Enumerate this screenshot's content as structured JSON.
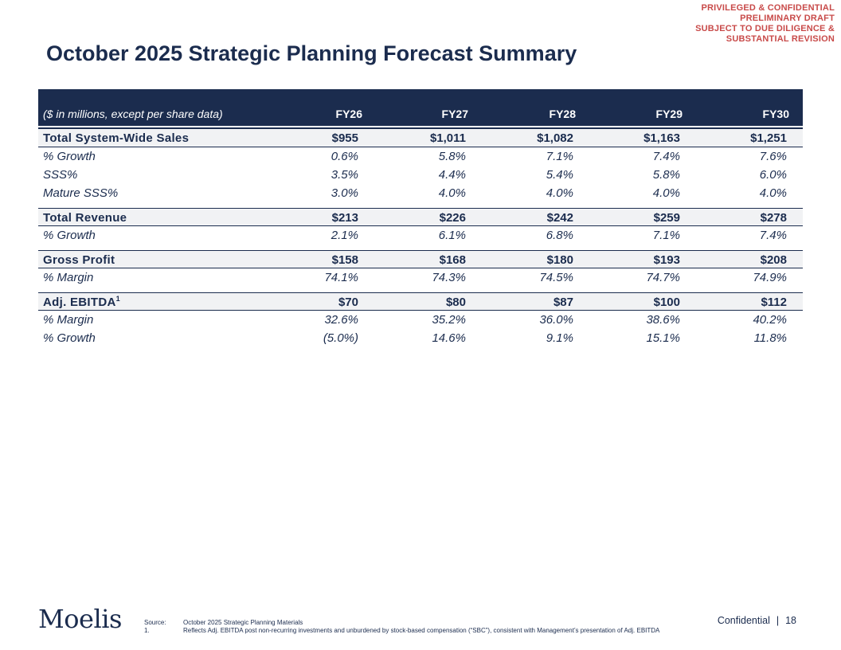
{
  "stamp": {
    "line1": "PRIVILEGED & CONFIDENTIAL",
    "line2": "PRELIMINARY DRAFT",
    "line3": "SUBJECT TO DUE DILIGENCE &",
    "line4": "SUBSTANTIAL REVISION"
  },
  "title": "October 2025 Strategic Planning Forecast Summary",
  "table": {
    "header": {
      "label": "($ in millions, except per share data)",
      "years": [
        "FY26",
        "FY27",
        "FY28",
        "FY29",
        "FY30"
      ]
    },
    "rows": {
      "sales": {
        "label": "Total System-Wide Sales",
        "values": [
          "$955",
          "$1,011",
          "$1,082",
          "$1,163",
          "$1,251"
        ]
      },
      "sales_growth": {
        "label": "% Growth",
        "values": [
          "0.6%",
          "5.8%",
          "7.1%",
          "7.4%",
          "7.6%"
        ]
      },
      "sss": {
        "label": "SSS%",
        "values": [
          "3.5%",
          "4.4%",
          "5.4%",
          "5.8%",
          "6.0%"
        ]
      },
      "mature_sss": {
        "label": "Mature SSS%",
        "values": [
          "3.0%",
          "4.0%",
          "4.0%",
          "4.0%",
          "4.0%"
        ]
      },
      "revenue": {
        "label": "Total Revenue",
        "values": [
          "$213",
          "$226",
          "$242",
          "$259",
          "$278"
        ]
      },
      "revenue_growth": {
        "label": "% Growth",
        "values": [
          "2.1%",
          "6.1%",
          "6.8%",
          "7.1%",
          "7.4%"
        ]
      },
      "gross_profit": {
        "label": "Gross Profit",
        "values": [
          "$158",
          "$168",
          "$180",
          "$193",
          "$208"
        ]
      },
      "gp_margin": {
        "label": "% Margin",
        "values": [
          "74.1%",
          "74.3%",
          "74.5%",
          "74.7%",
          "74.9%"
        ]
      },
      "ebitda": {
        "label": "Adj. EBITDA",
        "footnote": "1",
        "values": [
          "$70",
          "$80",
          "$87",
          "$100",
          "$112"
        ]
      },
      "ebitda_margin": {
        "label": "% Margin",
        "values": [
          "32.6%",
          "35.2%",
          "36.0%",
          "38.6%",
          "40.2%"
        ]
      },
      "ebitda_growth": {
        "label": "% Growth",
        "values": [
          "(5.0%)",
          "14.6%",
          "9.1%",
          "15.1%",
          "11.8%"
        ]
      }
    }
  },
  "footer": {
    "logo": "Moelis",
    "source_tag": "Source:",
    "source_text": "October 2025 Strategic Planning Materials",
    "note1_tag": "1.",
    "note1_text": "Reflects Adj. EBITDA post non-recurring investments and unburdened by stock-based compensation (“SBC”), consistent with Management’s presentation of Adj. EBITDA",
    "confidential": "Confidential",
    "separator": "|",
    "page_number": "18"
  }
}
